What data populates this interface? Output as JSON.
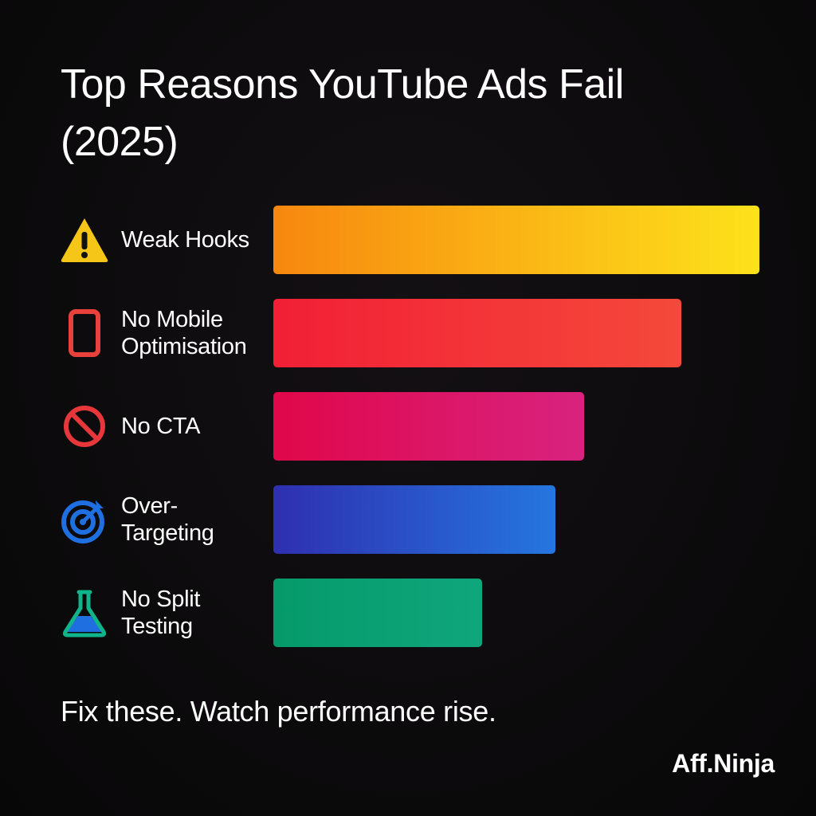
{
  "chart_data": {
    "type": "bar",
    "orientation": "horizontal",
    "title_lines": [
      "Top Reasons YouTube Ads Fail",
      "(2025)"
    ],
    "categories": [
      [
        "Weak Hooks"
      ],
      [
        "No Mobile",
        "Optimisation"
      ],
      [
        "No CTA"
      ],
      [
        "Over-",
        "Targeting"
      ],
      [
        "No Split",
        "Testing"
      ]
    ],
    "values": [
      100,
      84,
      64,
      58,
      43
    ],
    "max": 100,
    "icons": [
      "warning-icon",
      "mobile-phone-icon",
      "prohibited-icon",
      "target-icon",
      "flask-icon"
    ],
    "bar_gradients": [
      [
        "#f7870f",
        "#fde21b"
      ],
      [
        "#f21f36",
        "#f4493a"
      ],
      [
        "#e0074a",
        "#d8237f"
      ],
      [
        "#2f2fb0",
        "#2576e0"
      ],
      [
        "#069a6a",
        "#10a67c"
      ]
    ],
    "grid": false,
    "legend": "none"
  },
  "footer": {
    "tagline": "Fix these. Watch performance rise.",
    "brand": "Aff.Ninja"
  }
}
